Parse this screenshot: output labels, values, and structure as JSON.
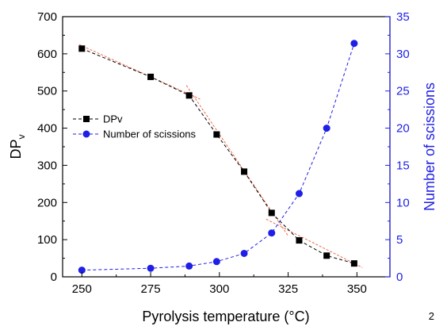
{
  "chart_data": {
    "type": "line",
    "xlabel": "Pyrolysis temperature (°C)",
    "ylabel_left_main": "DP",
    "ylabel_left_sub": "v",
    "ylabel_right": "Number of scissions",
    "xlim": [
      243,
      362
    ],
    "ylim_left": [
      0,
      700
    ],
    "ylim_right": [
      0,
      35
    ],
    "x_ticks": [
      250,
      275,
      300,
      325,
      350
    ],
    "y_left_ticks": [
      0,
      100,
      200,
      300,
      400,
      500,
      600,
      700
    ],
    "y_right_ticks": [
      0,
      5,
      10,
      15,
      20,
      25,
      30,
      35
    ],
    "grid": false,
    "legend_placement": "center-left",
    "series": [
      {
        "name": "DPv",
        "axis": "left",
        "marker": "square",
        "color": "#000000",
        "line_style": "dashed",
        "x": [
          250,
          275,
          289,
          299,
          309,
          319,
          329,
          339,
          349
        ],
        "y": [
          614,
          538,
          488,
          383,
          283,
          172,
          98,
          57,
          36
        ]
      },
      {
        "name": "Number of scissions",
        "axis": "right",
        "marker": "circle",
        "color": "#1f1fe6",
        "line_style": "dashed",
        "x": [
          250,
          275,
          289,
          299,
          309,
          319,
          329,
          339,
          349
        ],
        "y": [
          0.9,
          1.15,
          1.45,
          2.05,
          3.15,
          5.9,
          11.2,
          20.0,
          31.4
        ]
      }
    ],
    "fit_lines": {
      "color": "#f06a4a",
      "segments": [
        {
          "x": [
            249,
            293
          ],
          "y": [
            625,
            478
          ]
        },
        {
          "x": [
            288,
            325
          ],
          "y": [
            515,
            110
          ]
        },
        {
          "x": [
            317,
            352
          ],
          "y": [
            155,
            25
          ]
        }
      ]
    }
  },
  "colors": {
    "left_axis": "#000000",
    "right_axis": "#1f1fe6",
    "fit": "#f06a4a"
  },
  "page_number": "2"
}
